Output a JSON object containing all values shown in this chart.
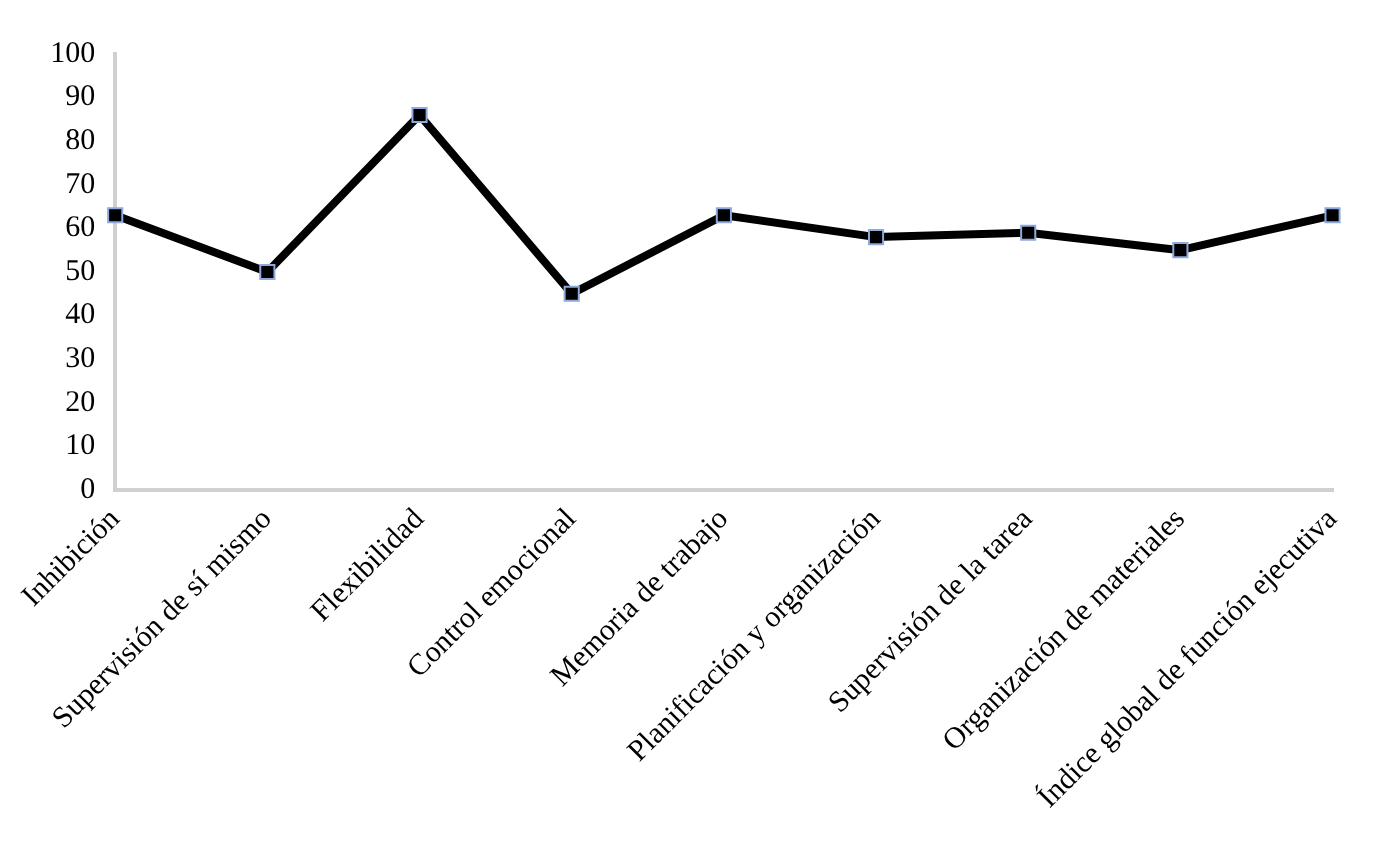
{
  "chart_data": {
    "type": "line",
    "categories": [
      "Inhibición",
      "Supervisión de sí mismo",
      "Flexibilidad",
      "Control emocional",
      "Memoria de trabajo",
      "Planificación y organización",
      "Supervisión de la tarea",
      "Organización de materiales",
      "Índice global de función ejecutiva"
    ],
    "series": [
      {
        "color": "#000000",
        "values": [
          63,
          50,
          86,
          45,
          63,
          58,
          59,
          55,
          63
        ]
      }
    ],
    "ylim": [
      0,
      100
    ],
    "yticks": [
      0,
      10,
      20,
      30,
      40,
      50,
      60,
      70,
      80,
      90,
      100
    ],
    "grid": false,
    "legend": false,
    "marker": "square",
    "line_style": "solid"
  }
}
